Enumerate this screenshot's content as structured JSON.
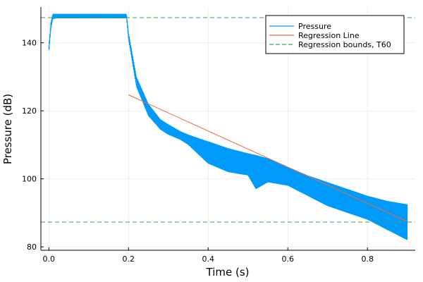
{
  "chart_data": {
    "type": "line",
    "title": "",
    "xlabel": "Time (s)",
    "ylabel": "Pressure (dB)",
    "xlim": [
      -0.02,
      0.92
    ],
    "ylim": [
      79,
      150.5
    ],
    "xticks": [
      0.0,
      0.2,
      0.4,
      0.6,
      0.8
    ],
    "xtick_labels": [
      "0.0",
      "0.2",
      "0.4",
      "0.6",
      "0.8"
    ],
    "yticks": [
      80,
      100,
      120,
      140
    ],
    "ytick_labels": [
      "80",
      "100",
      "120",
      "140"
    ],
    "grid": true,
    "legend_position": "top-right",
    "series": [
      {
        "name": "Pressure",
        "color": "#009AFA",
        "style": "solid",
        "envelope": {
          "x": [
            0.0,
            0.005,
            0.01,
            0.02,
            0.1,
            0.195,
            0.2,
            0.22,
            0.25,
            0.28,
            0.3,
            0.33,
            0.35,
            0.4,
            0.45,
            0.5,
            0.52,
            0.55,
            0.6,
            0.65,
            0.7,
            0.75,
            0.8,
            0.85,
            0.9
          ],
          "upper": [
            139,
            146,
            148.5,
            148.5,
            148.5,
            148.5,
            143,
            130,
            122,
            117.5,
            116,
            114,
            113,
            111,
            109,
            107.5,
            107,
            106,
            103.5,
            101,
            99,
            97,
            95,
            93.5,
            92.5
          ],
          "lower": [
            137,
            144,
            147,
            147.2,
            147.2,
            147.2,
            141,
            127,
            118.5,
            114.5,
            113,
            111.5,
            110,
            104.5,
            102,
            101,
            97,
            99,
            98,
            95,
            92,
            90,
            88,
            85,
            82
          ]
        }
      },
      {
        "name": "Regression Line",
        "color": "#E26F46",
        "style": "solid",
        "x": [
          0.2,
          0.9
        ],
        "y": [
          124.7,
          87.5
        ]
      },
      {
        "name": "Regression bounds, T60",
        "color": "#3DA44D",
        "style": "dashed",
        "hlines": [
          147.4,
          87.3
        ]
      }
    ]
  }
}
